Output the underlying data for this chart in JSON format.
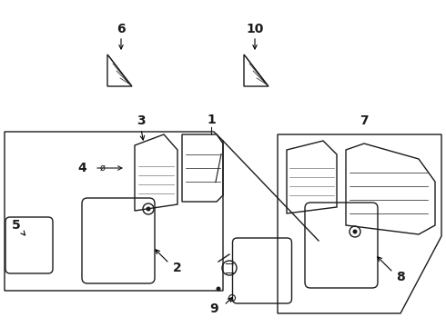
{
  "background_color": "#ffffff",
  "line_color": "#1a1a1a",
  "fig_width": 4.9,
  "fig_height": 3.6,
  "dpi": 100,
  "font_size": 10,
  "bold_font": true
}
